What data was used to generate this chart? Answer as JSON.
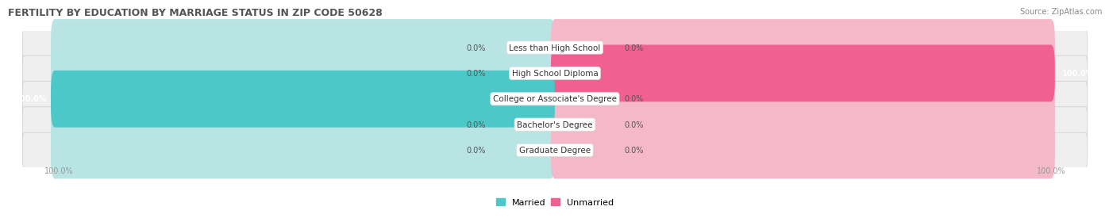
{
  "title": "FERTILITY BY EDUCATION BY MARRIAGE STATUS IN ZIP CODE 50628",
  "source": "Source: ZipAtlas.com",
  "categories": [
    "Less than High School",
    "High School Diploma",
    "College or Associate's Degree",
    "Bachelor's Degree",
    "Graduate Degree"
  ],
  "married_values": [
    0.0,
    0.0,
    100.0,
    0.0,
    0.0
  ],
  "unmarried_values": [
    0.0,
    100.0,
    0.0,
    0.0,
    0.0
  ],
  "married_color": "#4DC8C8",
  "unmarried_color": "#F06090",
  "married_bg_color": "#B8E4E4",
  "unmarried_bg_color": "#F4B8C8",
  "row_bg_color": "#EFEFEF",
  "title_fontsize": 9,
  "label_fontsize": 7.5,
  "value_fontsize": 7,
  "legend_fontsize": 8,
  "source_fontsize": 7
}
